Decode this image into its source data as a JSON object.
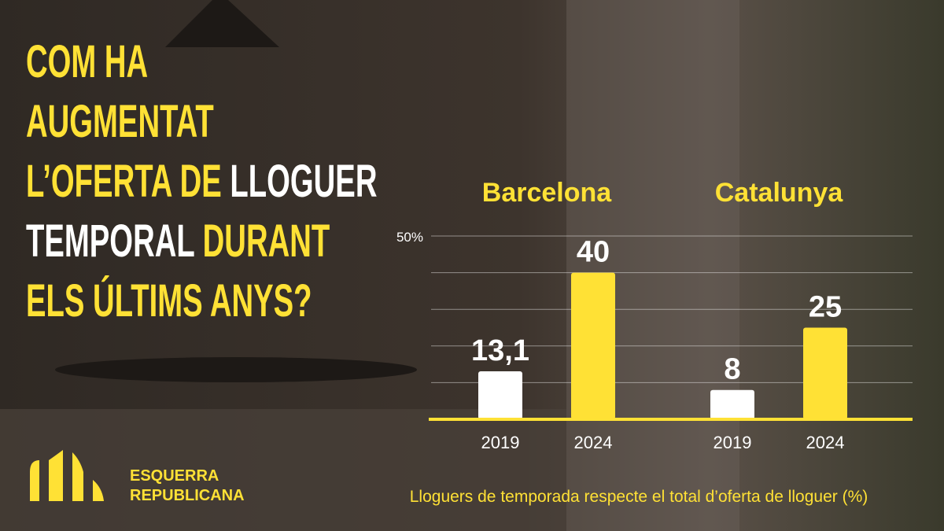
{
  "chart_data": {
    "type": "bar",
    "title_lines": [
      [
        {
          "text": "COM HA",
          "color": "#ffe135"
        }
      ],
      [
        {
          "text": "AUGMENTAT",
          "color": "#ffe135"
        }
      ],
      [
        {
          "text": "L’OFERTA DE ",
          "color": "#ffe135"
        },
        {
          "text": "LLOGUER",
          "color": "#ffffff"
        }
      ],
      [
        {
          "text": "TEMPORAL ",
          "color": "#ffffff"
        },
        {
          "text": "DURANT",
          "color": "#ffe135"
        }
      ],
      [
        {
          "text": "ELS ÚLTIMS ANYS?",
          "color": "#ffe135"
        }
      ]
    ],
    "groups": [
      {
        "name": "Barcelona",
        "categories": [
          "2019",
          "2024"
        ],
        "values": [
          13.1,
          40
        ],
        "value_labels": [
          "13,1",
          "40"
        ]
      },
      {
        "name": "Catalunya",
        "categories": [
          "2019",
          "2024"
        ],
        "values": [
          8,
          25
        ],
        "value_labels": [
          "8",
          "25"
        ]
      }
    ],
    "colors": [
      "#ffffff",
      "#ffe135"
    ],
    "ylim": [
      0,
      50
    ],
    "yticks": [
      {
        "value": 10,
        "label": null
      },
      {
        "value": 20,
        "label": null
      },
      {
        "value": 30,
        "label": null
      },
      {
        "value": 40,
        "label": null
      },
      {
        "value": 50,
        "label": "50%"
      }
    ],
    "grid": true,
    "xlabel": "Lloguers de temporada respecte el total d’oferta de lloguer (%)"
  },
  "logo": {
    "line1": "ESQUERRA",
    "line2": "REPUBLICANA"
  }
}
